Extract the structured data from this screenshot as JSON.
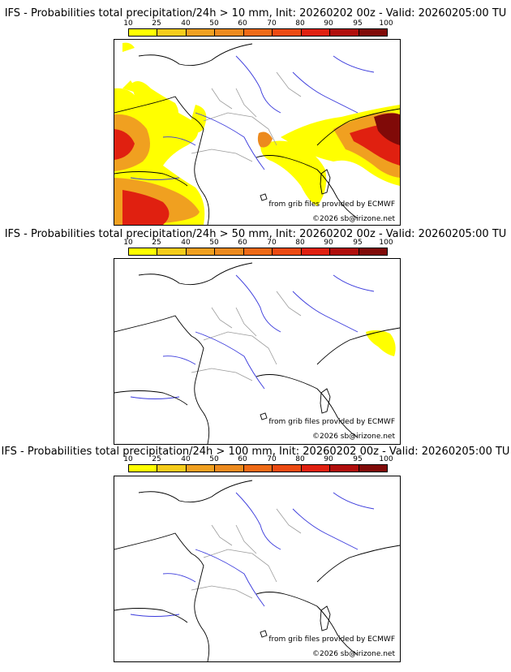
{
  "scale": {
    "labels": [
      "10",
      "25",
      "40",
      "50",
      "60",
      "70",
      "80",
      "90",
      "95",
      "100"
    ],
    "colors": [
      "#ffff00",
      "#f5cc1a",
      "#f0a020",
      "#ec8a1e",
      "#ee6a16",
      "#ec4a12",
      "#e02010",
      "#b00e0c",
      "#800a08",
      "#4a0402"
    ]
  },
  "panels": [
    {
      "title": "IFS - Probabilities total precipitation/24h > 10 mm, Init: 20260202 00z - Valid: 20260205:00 TU",
      "credit_source": "from grib files provided by ECMWF",
      "credit_copyright": "©2026 sb@irizone.net"
    },
    {
      "title": "IFS - Probabilities total precipitation/24h > 50 mm, Init: 20260202 00z - Valid: 20260205:00 TU",
      "credit_source": "from grib files provided by ECMWF",
      "credit_copyright": "©2026 sb@irizone.net"
    },
    {
      "title": "IFS - Probabilities total precipitation/24h > 100 mm, Init: 20260202 00z - Valid: 20260205:00 TU",
      "credit_source": "from grib files provided by ECMWF",
      "credit_copyright": "©2026 sb@irizone.net"
    }
  ],
  "colors": {
    "coast": "#000000",
    "borders": "#9a9a9a",
    "rivers": "#3a3adc"
  }
}
